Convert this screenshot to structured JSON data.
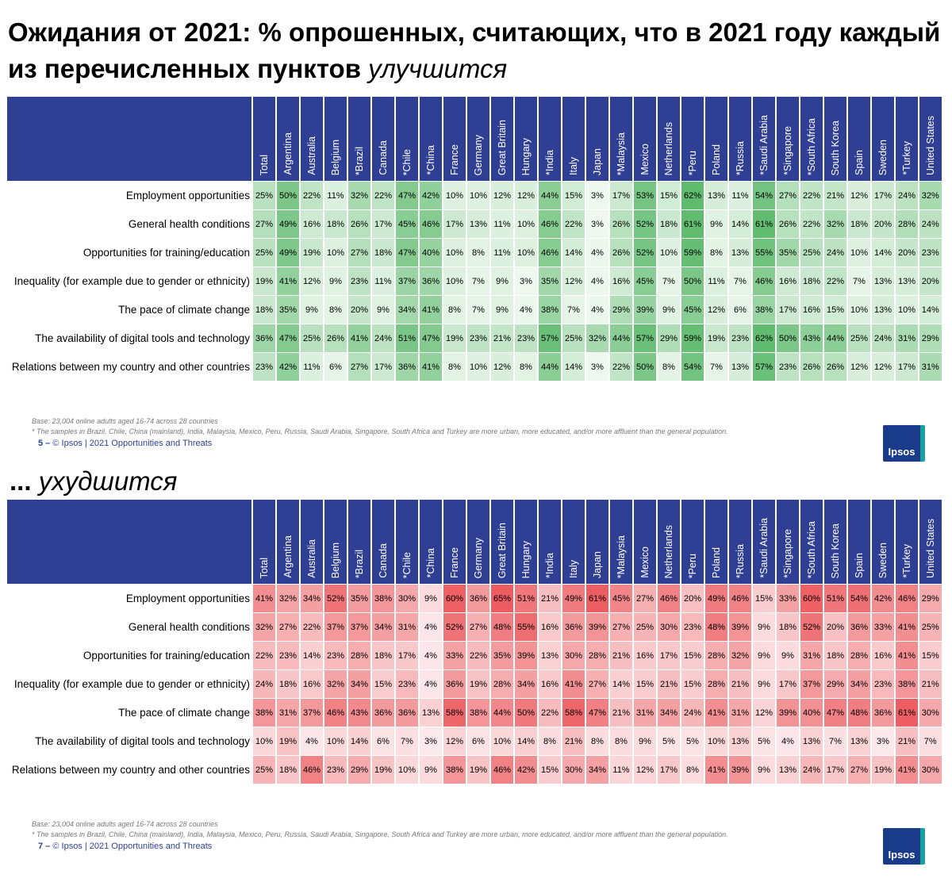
{
  "title_bold": "Ожидания от 2021: % опрошенных, считающих, что в 2021 году каждый из перечисленных пунктов",
  "title_italic": "улучшится",
  "tables": [
    {
      "heading_bold": null,
      "heading_italic": null,
      "scale": "green",
      "columns": [
        "Total",
        "Argentina",
        "Australia",
        "Belgium",
        "*Brazil",
        "Canada",
        "*Chile",
        "*China",
        "France",
        "Germany",
        "Great Britain",
        "Hungary",
        "*India",
        "Italy",
        "Japan",
        "*Malaysia",
        "Mexico",
        "Netherlands",
        "*Peru",
        "Poland",
        "*Russia",
        "*Saudi Arabia",
        "*Singapore",
        "*South Africa",
        "South Korea",
        "Spain",
        "Sweden",
        "*Turkey",
        "United States"
      ],
      "rows": [
        {
          "label": "Employment opportunities",
          "cells": [
            "25%",
            "50%",
            "22%",
            "11%",
            "32%",
            "22%",
            "47%",
            "42%",
            "10%",
            "10%",
            "12%",
            "12%",
            "44%",
            "15%",
            "3%",
            "17%",
            "53%",
            "15%",
            "62%",
            "13%",
            "11%",
            "54%",
            "27%",
            "22%",
            "21%",
            "12%",
            "17%",
            "24%",
            "32%"
          ]
        },
        {
          "label": "General health conditions",
          "cells": [
            "27%",
            "49%",
            "16%",
            "18%",
            "26%",
            "17%",
            "45%",
            "46%",
            "17%",
            "13%",
            "11%",
            "10%",
            "46%",
            "22%",
            "3%",
            "26%",
            "52%",
            "18%",
            "61%",
            "9%",
            "14%",
            "61%",
            "26%",
            "22%",
            "32%",
            "18%",
            "20%",
            "28%",
            "24%"
          ]
        },
        {
          "label": "Opportunities for training/education",
          "cells": [
            "25%",
            "49%",
            "19%",
            "10%",
            "27%",
            "18%",
            "47%",
            "40%",
            "10%",
            "8%",
            "11%",
            "10%",
            "46%",
            "14%",
            "4%",
            "26%",
            "52%",
            "10%",
            "59%",
            "8%",
            "13%",
            "55%",
            "35%",
            "25%",
            "24%",
            "10%",
            "14%",
            "20%",
            "23%"
          ]
        },
        {
          "label": "Inequality (for example due to gender or ethnicity)",
          "cells": [
            "19%",
            "41%",
            "12%",
            "9%",
            "23%",
            "11%",
            "37%",
            "36%",
            "10%",
            "7%",
            "9%",
            "3%",
            "35%",
            "12%",
            "4%",
            "16%",
            "45%",
            "7%",
            "50%",
            "11%",
            "7%",
            "46%",
            "16%",
            "18%",
            "22%",
            "7%",
            "13%",
            "13%",
            "20%"
          ]
        },
        {
          "label": "The pace of climate change",
          "cells": [
            "18%",
            "35%",
            "9%",
            "8%",
            "20%",
            "9%",
            "34%",
            "41%",
            "8%",
            "7%",
            "9%",
            "4%",
            "38%",
            "7%",
            "4%",
            "29%",
            "39%",
            "9%",
            "45%",
            "12%",
            "6%",
            "38%",
            "17%",
            "16%",
            "15%",
            "10%",
            "13%",
            "10%",
            "14%"
          ]
        },
        {
          "label": "The availability of digital tools and technology",
          "cells": [
            "36%",
            "47%",
            "25%",
            "26%",
            "41%",
            "24%",
            "51%",
            "47%",
            "19%",
            "23%",
            "21%",
            "23%",
            "57%",
            "25%",
            "32%",
            "44%",
            "57%",
            "29%",
            "59%",
            "19%",
            "23%",
            "62%",
            "50%",
            "43%",
            "44%",
            "25%",
            "24%",
            "31%",
            "29%"
          ]
        },
        {
          "label": "Relations between my country and other countries",
          "cells": [
            "23%",
            "42%",
            "11%",
            "6%",
            "27%",
            "17%",
            "36%",
            "41%",
            "8%",
            "10%",
            "12%",
            "8%",
            "44%",
            "14%",
            "3%",
            "22%",
            "50%",
            "8%",
            "54%",
            "7%",
            "13%",
            "57%",
            "23%",
            "26%",
            "26%",
            "12%",
            "12%",
            "17%",
            "31%"
          ]
        }
      ],
      "base": "Base: 23,004 online adults aged 16-74 across 28 countries",
      "note": "* The samples in Brazil, Chile, China (mainland), India, Malaysia, Mexico, Peru, Russia, Saudi Arabia, Singapore, South Africa and Turkey are more urban, more educated, and/or more affluent than the general population.",
      "page": "5 –",
      "footer": "© Ipsos | 2021 Opportunities and Threats",
      "logo": "Ipsos"
    },
    {
      "heading_bold": "...",
      "heading_italic": "ухудшится",
      "scale": "red",
      "columns": [
        "Total",
        "Argentina",
        "Australia",
        "Belgium",
        "*Brazil",
        "Canada",
        "*Chile",
        "*China",
        "France",
        "Germany",
        "Great Britain",
        "Hungary",
        "*India",
        "Italy",
        "Japan",
        "*Malaysia",
        "Mexico",
        "Netherlands",
        "*Peru",
        "Poland",
        "*Russia",
        "*Saudi Arabia",
        "*Singapore",
        "*South Africa",
        "South Korea",
        "Spain",
        "Sweden",
        "*Turkey",
        "United States"
      ],
      "rows": [
        {
          "label": "Employment opportunities",
          "cells": [
            "41%",
            "32%",
            "34%",
            "52%",
            "35%",
            "38%",
            "30%",
            "9%",
            "60%",
            "36%",
            "65%",
            "51%",
            "21%",
            "49%",
            "61%",
            "45%",
            "27%",
            "46%",
            "20%",
            "49%",
            "46%",
            "15%",
            "33%",
            "60%",
            "51%",
            "54%",
            "42%",
            "46%",
            "29%"
          ]
        },
        {
          "label": "General health conditions",
          "cells": [
            "32%",
            "27%",
            "22%",
            "37%",
            "37%",
            "34%",
            "31%",
            "4%",
            "52%",
            "27%",
            "48%",
            "55%",
            "16%",
            "36%",
            "39%",
            "27%",
            "25%",
            "30%",
            "23%",
            "48%",
            "39%",
            "9%",
            "18%",
            "52%",
            "20%",
            "36%",
            "33%",
            "41%",
            "25%"
          ]
        },
        {
          "label": "Opportunities for training/education",
          "cells": [
            "22%",
            "23%",
            "14%",
            "23%",
            "28%",
            "18%",
            "17%",
            "4%",
            "33%",
            "22%",
            "35%",
            "39%",
            "13%",
            "30%",
            "28%",
            "21%",
            "16%",
            "17%",
            "15%",
            "28%",
            "32%",
            "9%",
            "9%",
            "31%",
            "18%",
            "28%",
            "16%",
            "41%",
            "15%"
          ]
        },
        {
          "label": "Inequality (for example due to gender or ethnicity)",
          "cells": [
            "24%",
            "18%",
            "16%",
            "32%",
            "34%",
            "15%",
            "23%",
            "4%",
            "36%",
            "19%",
            "28%",
            "34%",
            "16%",
            "41%",
            "27%",
            "14%",
            "15%",
            "21%",
            "15%",
            "28%",
            "21%",
            "9%",
            "17%",
            "37%",
            "29%",
            "34%",
            "23%",
            "38%",
            "21%"
          ]
        },
        {
          "label": "The pace of climate change",
          "cells": [
            "38%",
            "31%",
            "37%",
            "46%",
            "43%",
            "36%",
            "36%",
            "13%",
            "58%",
            "38%",
            "44%",
            "50%",
            "22%",
            "58%",
            "47%",
            "21%",
            "31%",
            "34%",
            "24%",
            "41%",
            "31%",
            "12%",
            "39%",
            "40%",
            "47%",
            "48%",
            "36%",
            "61%",
            "30%"
          ]
        },
        {
          "label": "The availability of digital tools and technology",
          "cells": [
            "10%",
            "19%",
            "4%",
            "10%",
            "14%",
            "6%",
            "7%",
            "3%",
            "12%",
            "6%",
            "10%",
            "14%",
            "8%",
            "21%",
            "8%",
            "8%",
            "9%",
            "5%",
            "5%",
            "10%",
            "13%",
            "5%",
            "4%",
            "13%",
            "7%",
            "13%",
            "3%",
            "21%",
            "7%"
          ]
        },
        {
          "label": "Relations between my country and other countries",
          "cells": [
            "25%",
            "18%",
            "46%",
            "23%",
            "29%",
            "19%",
            "10%",
            "9%",
            "38%",
            "19%",
            "46%",
            "42%",
            "15%",
            "30%",
            "34%",
            "11%",
            "12%",
            "17%",
            "8%",
            "41%",
            "39%",
            "9%",
            "13%",
            "24%",
            "17%",
            "27%",
            "19%",
            "41%",
            "30%"
          ]
        }
      ],
      "base": "Base: 23,004 online adults aged 16-74 across 28 countries",
      "note": "* The samples in Brazil, Chile, China (mainland), India, Malaysia, Mexico, Peru, Russia, Saudi Arabia, Singapore, South Africa and Turkey are more urban, more educated, and/or more affluent than the general population.",
      "page": "7 –",
      "footer": "© Ipsos | 2021 Opportunities and Threats",
      "logo": "Ipsos"
    }
  ]
}
